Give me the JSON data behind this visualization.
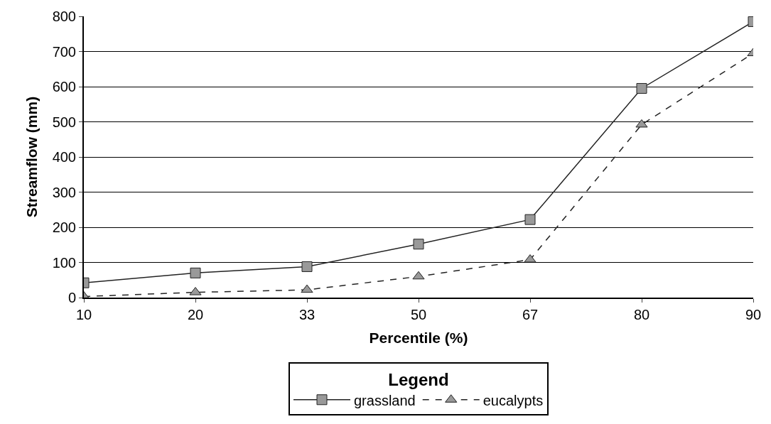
{
  "chart_data": {
    "type": "line",
    "xlabel": "Percentile (%)",
    "ylabel": "Streamflow (mm)",
    "legend_title": "Legend",
    "categories": [
      "10",
      "20",
      "33",
      "50",
      "67",
      "80",
      "90"
    ],
    "series": [
      {
        "name": "grassland",
        "color": "#222222",
        "marker": "square",
        "line_style": "solid",
        "values": [
          42,
          70,
          88,
          152,
          222,
          595,
          785
        ]
      },
      {
        "name": "eucalypts",
        "color": "#222222",
        "marker": "triangle",
        "line_style": "dashed",
        "values": [
          3,
          15,
          22,
          60,
          108,
          492,
          695
        ]
      }
    ],
    "ylim": [
      0,
      800
    ],
    "yticks": [
      0,
      100,
      200,
      300,
      400,
      500,
      600,
      700,
      800
    ],
    "grid": "y",
    "legend": "bottom"
  }
}
